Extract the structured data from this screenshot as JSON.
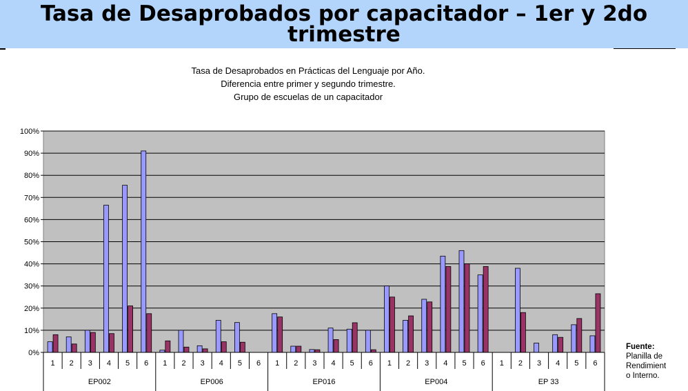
{
  "slide": {
    "title": "Tasa de Desaprobados por capacitador – 1er y 2do trimestre"
  },
  "source_note": {
    "title": "Fuente:",
    "text": "Planilla de\nRendimient\no Interno."
  },
  "colors": {
    "header_band": "#b4d5fb",
    "plot_background": "#c0c0c0",
    "series_1": "#9999ff",
    "series_2": "#993366"
  },
  "chart_data": {
    "type": "bar",
    "title": [
      "Tasa de Desaprobados en Prácticas del Lenguaje por Año.",
      "Diferencia entre primer y segundo trimestre.",
      "Grupo de escuelas de un capacitador"
    ],
    "xlabel": "",
    "ylabel": "",
    "ylim": [
      0,
      100
    ],
    "yticks": [
      "0%",
      "10%",
      "20%",
      "30%",
      "40%",
      "50%",
      "60%",
      "70%",
      "80%",
      "90%",
      "100%"
    ],
    "grid": true,
    "legend": "none",
    "categories": [
      "1",
      "2",
      "3",
      "4",
      "5",
      "6",
      "1",
      "2",
      "3",
      "4",
      "5",
      "6",
      "1",
      "2",
      "3",
      "4",
      "5",
      "6",
      "1",
      "2",
      "3",
      "4",
      "5",
      "6",
      "1",
      "2",
      "3",
      "4",
      "5",
      "6"
    ],
    "groups": [
      "EP002",
      "EP006",
      "EP016",
      "EP004",
      "EP 33"
    ],
    "series": [
      {
        "color": "#9999ff",
        "values": [
          4.8,
          7.0,
          10.0,
          66.5,
          75.5,
          91.0,
          1.0,
          10.0,
          3.0,
          14.5,
          13.5,
          0,
          17.5,
          2.8,
          1.3,
          11.0,
          10.5,
          10.0,
          30.0,
          14.5,
          24.0,
          43.5,
          46.0,
          35.0,
          0,
          38.0,
          4.2,
          8.0,
          12.5,
          7.5
        ]
      },
      {
        "color": "#993366",
        "values": [
          8.0,
          3.8,
          9.0,
          8.5,
          21.0,
          17.5,
          5.2,
          2.4,
          1.6,
          4.8,
          4.6,
          0,
          16.0,
          2.8,
          1.2,
          5.8,
          13.4,
          1.2,
          25.0,
          16.5,
          22.8,
          38.8,
          40.0,
          38.8,
          0,
          18.0,
          0,
          6.8,
          15.3,
          26.5
        ]
      }
    ]
  }
}
